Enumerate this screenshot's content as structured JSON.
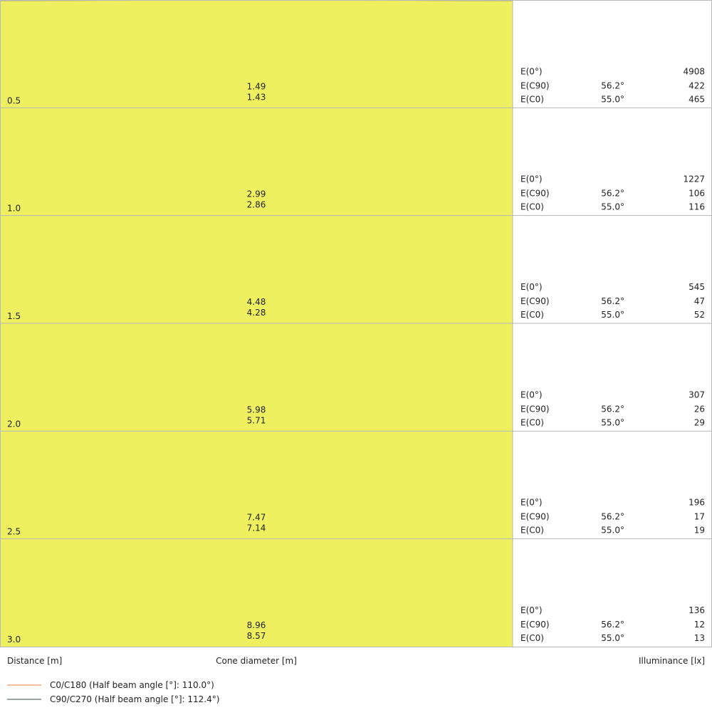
{
  "chart_data": {
    "type": "cone-diagram",
    "xlabel": "Distance [m]",
    "center_label": "Cone diameter [m]",
    "right_label": "Illuminance [lx]",
    "colors": {
      "fill": "#eef060",
      "c0": "#f5a878",
      "c90": "#7a8a8a",
      "grid": "#b8b8b8"
    },
    "legend": [
      {
        "name": "C0/C180 (Half beam angle [°]: 110.0°)",
        "color": "#f5a878"
      },
      {
        "name": "C90/C270 (Half beam angle [°]: 112.4°)",
        "color": "#7a8a8a"
      }
    ],
    "half_angle_c90_deg": 56.2,
    "half_angle_c0_deg": 55.0,
    "rows": [
      {
        "distance": "0.5",
        "d1": "1.49",
        "d2": "1.43",
        "e0": "4908",
        "ec90_angle": "56.2°",
        "ec90": "422",
        "ec0_angle": "55.0°",
        "ec0": "465"
      },
      {
        "distance": "1.0",
        "d1": "2.99",
        "d2": "2.86",
        "e0": "1227",
        "ec90_angle": "56.2°",
        "ec90": "106",
        "ec0_angle": "55.0°",
        "ec0": "116"
      },
      {
        "distance": "1.5",
        "d1": "4.48",
        "d2": "4.28",
        "e0": "545",
        "ec90_angle": "56.2°",
        "ec90": "47",
        "ec0_angle": "55.0°",
        "ec0": "52"
      },
      {
        "distance": "2.0",
        "d1": "5.98",
        "d2": "5.71",
        "e0": "307",
        "ec90_angle": "56.2°",
        "ec90": "26",
        "ec0_angle": "55.0°",
        "ec0": "29"
      },
      {
        "distance": "2.5",
        "d1": "7.47",
        "d2": "7.14",
        "e0": "196",
        "ec90_angle": "56.2°",
        "ec90": "17",
        "ec0_angle": "55.0°",
        "ec0": "19"
      },
      {
        "distance": "3.0",
        "d1": "8.96",
        "d2": "8.57",
        "e0": "136",
        "ec90_angle": "56.2°",
        "ec90": "12",
        "ec0_angle": "55.0°",
        "ec0": "13"
      }
    ],
    "labels": {
      "e0": "E(0°)",
      "ec90": "E(C90)",
      "ec0": "E(C0)"
    }
  }
}
